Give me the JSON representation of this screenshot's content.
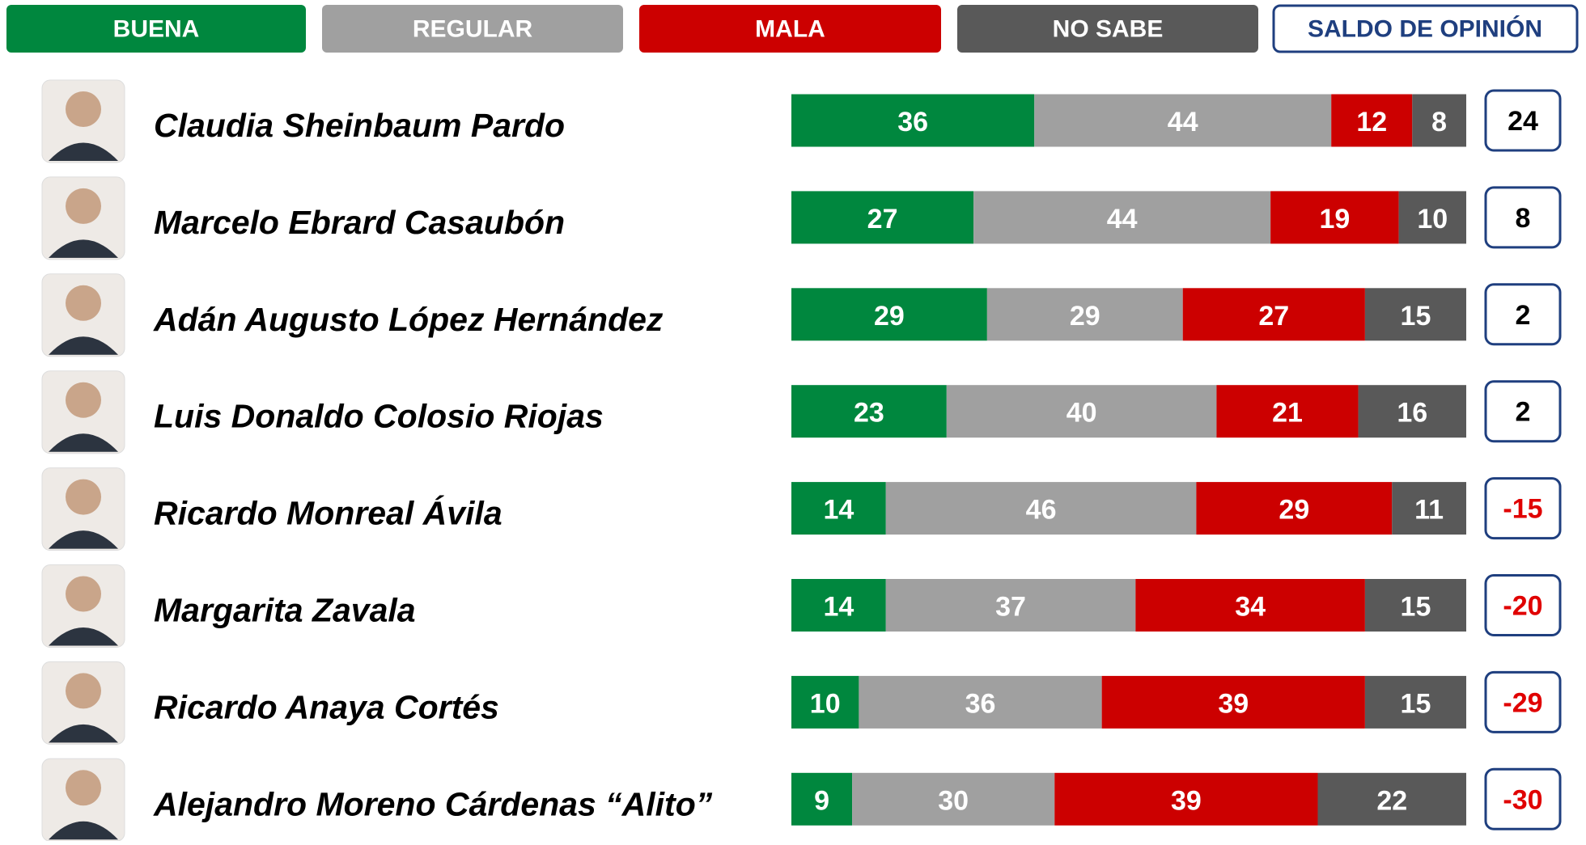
{
  "chart_data": {
    "type": "stacked-bar",
    "orientation": "horizontal",
    "categories": [
      "Claudia Sheinbaum Pardo",
      "Marcelo Ebrard Casaubón",
      "Adán Augusto López Hernández",
      "Luis Donaldo Colosio Riojas",
      "Ricardo Monreal Ávila",
      "Margarita Zavala",
      "Ricardo Anaya Cortés",
      "Alejandro Moreno Cárdenas “Alito”"
    ],
    "xlim": [
      0,
      100
    ],
    "series": [
      {
        "name": "BUENA",
        "color": "#00873e",
        "values": [
          36,
          27,
          29,
          23,
          14,
          14,
          10,
          9
        ]
      },
      {
        "name": "REGULAR",
        "color": "#a0a0a0",
        "values": [
          44,
          44,
          29,
          40,
          46,
          37,
          36,
          30
        ]
      },
      {
        "name": "MALA",
        "color": "#cc0000",
        "values": [
          12,
          19,
          27,
          21,
          29,
          34,
          39,
          39
        ]
      },
      {
        "name": "NO SABE",
        "color": "#595959",
        "values": [
          8,
          10,
          15,
          16,
          11,
          15,
          15,
          22
        ]
      }
    ],
    "balance": {
      "name": "SALDO DE OPINIÓN",
      "border_color": "#1f3f7f",
      "positive_color": "#000000",
      "negative_color": "#e00000",
      "values": [
        24,
        8,
        2,
        2,
        -15,
        -20,
        -29,
        -30
      ]
    }
  }
}
